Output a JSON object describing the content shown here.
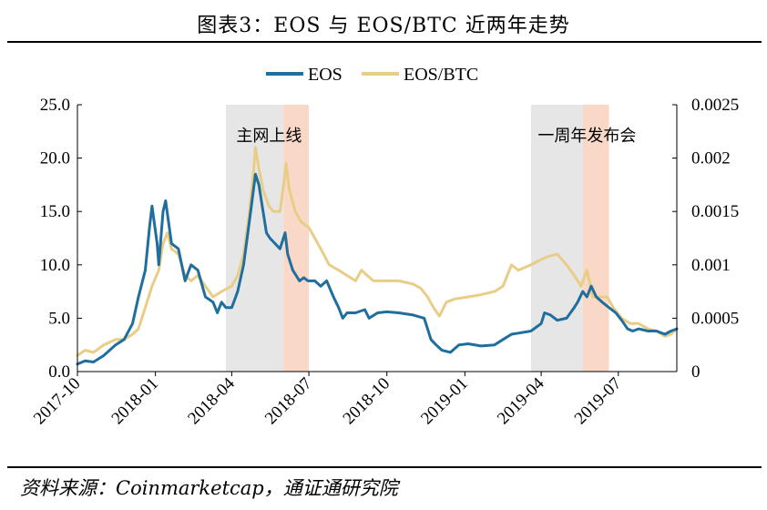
{
  "figure_title": "图表3：EOS 与 EOS/BTC 近两年走势",
  "source_note": "资料来源：Coinmarketcap，通证通研究院",
  "colors": {
    "eos": "#1F6E9E",
    "eos_btc": "#E9CD87",
    "band_gray": "#E6E6E6",
    "band_orange": "#FAD8C8"
  },
  "chart_data": {
    "type": "line",
    "legend_position": "top-center",
    "grid": false,
    "x_ticks": [
      "2017-10",
      "2018-01",
      "2018-04",
      "2018-07",
      "2018-10",
      "2019-01",
      "2019-04",
      "2019-07"
    ],
    "x_range": [
      "2017-10-01",
      "2019-09-08"
    ],
    "y_left": {
      "lim": [
        0,
        25
      ],
      "ticks": [
        "0.0",
        "5.0",
        "10.0",
        "15.0",
        "20.0",
        "25.0"
      ]
    },
    "y_right": {
      "lim": [
        0,
        0.0025
      ],
      "ticks": [
        "0",
        "0.0005",
        "0.001",
        "0.0015",
        "0.002",
        "0.0025"
      ]
    },
    "annotations": [
      {
        "text": "主网上线",
        "date": "2018-05-15"
      },
      {
        "text": "一周年发布会",
        "date": "2019-05-25"
      }
    ],
    "bands": [
      {
        "start": "2018-03-25",
        "end": "2018-06-01",
        "color": "gray"
      },
      {
        "start": "2018-06-01",
        "end": "2018-07-01",
        "color": "orange"
      },
      {
        "start": "2019-03-20",
        "end": "2019-05-20",
        "color": "gray"
      },
      {
        "start": "2019-05-20",
        "end": "2019-06-20",
        "color": "orange"
      }
    ],
    "series": [
      {
        "name": "EOS",
        "axis": "left",
        "points": [
          [
            "2017-10-01",
            0.7
          ],
          [
            "2017-10-10",
            1.0
          ],
          [
            "2017-10-20",
            0.9
          ],
          [
            "2017-11-01",
            1.5
          ],
          [
            "2017-11-15",
            2.5
          ],
          [
            "2017-11-25",
            3.0
          ],
          [
            "2017-12-05",
            4.5
          ],
          [
            "2017-12-12",
            7.0
          ],
          [
            "2017-12-20",
            9.5
          ],
          [
            "2017-12-25",
            13.5
          ],
          [
            "2017-12-28",
            15.5
          ],
          [
            "2018-01-03",
            12.0
          ],
          [
            "2018-01-05",
            10.0
          ],
          [
            "2018-01-10",
            15.0
          ],
          [
            "2018-01-13",
            16.0
          ],
          [
            "2018-01-20",
            12.0
          ],
          [
            "2018-01-28",
            11.5
          ],
          [
            "2018-02-05",
            8.5
          ],
          [
            "2018-02-12",
            10.0
          ],
          [
            "2018-02-20",
            9.5
          ],
          [
            "2018-03-01",
            7.0
          ],
          [
            "2018-03-10",
            6.5
          ],
          [
            "2018-03-15",
            5.5
          ],
          [
            "2018-03-20",
            6.5
          ],
          [
            "2018-03-25",
            6.0
          ],
          [
            "2018-04-01",
            6.0
          ],
          [
            "2018-04-08",
            7.5
          ],
          [
            "2018-04-15",
            10.0
          ],
          [
            "2018-04-20",
            13.0
          ],
          [
            "2018-04-25",
            16.0
          ],
          [
            "2018-04-29",
            18.5
          ],
          [
            "2018-05-03",
            17.5
          ],
          [
            "2018-05-08",
            15.0
          ],
          [
            "2018-05-12",
            13.0
          ],
          [
            "2018-05-16",
            12.5
          ],
          [
            "2018-05-22",
            12.0
          ],
          [
            "2018-05-28",
            11.5
          ],
          [
            "2018-06-03",
            13.0
          ],
          [
            "2018-06-06",
            11.0
          ],
          [
            "2018-06-12",
            9.5
          ],
          [
            "2018-06-20",
            8.5
          ],
          [
            "2018-06-25",
            8.8
          ],
          [
            "2018-06-30",
            8.5
          ],
          [
            "2018-07-08",
            8.5
          ],
          [
            "2018-07-15",
            8.0
          ],
          [
            "2018-07-22",
            8.5
          ],
          [
            "2018-07-30",
            7.0
          ],
          [
            "2018-08-05",
            6.0
          ],
          [
            "2018-08-10",
            5.0
          ],
          [
            "2018-08-15",
            5.5
          ],
          [
            "2018-08-25",
            5.5
          ],
          [
            "2018-09-05",
            5.8
          ],
          [
            "2018-09-10",
            5.0
          ],
          [
            "2018-09-20",
            5.5
          ],
          [
            "2018-10-01",
            5.6
          ],
          [
            "2018-10-15",
            5.5
          ],
          [
            "2018-11-01",
            5.3
          ],
          [
            "2018-11-14",
            5.0
          ],
          [
            "2018-11-18",
            4.0
          ],
          [
            "2018-11-22",
            3.0
          ],
          [
            "2018-11-28",
            2.5
          ],
          [
            "2018-12-05",
            2.0
          ],
          [
            "2018-12-15",
            1.8
          ],
          [
            "2018-12-25",
            2.5
          ],
          [
            "2019-01-05",
            2.6
          ],
          [
            "2019-01-20",
            2.4
          ],
          [
            "2019-02-05",
            2.5
          ],
          [
            "2019-02-15",
            3.0
          ],
          [
            "2019-02-25",
            3.5
          ],
          [
            "2019-03-05",
            3.6
          ],
          [
            "2019-03-20",
            3.8
          ],
          [
            "2019-04-01",
            4.5
          ],
          [
            "2019-04-05",
            5.5
          ],
          [
            "2019-04-12",
            5.3
          ],
          [
            "2019-04-20",
            4.8
          ],
          [
            "2019-05-01",
            5.0
          ],
          [
            "2019-05-10",
            6.0
          ],
          [
            "2019-05-14",
            6.5
          ],
          [
            "2019-05-20",
            7.5
          ],
          [
            "2019-05-25",
            7.0
          ],
          [
            "2019-05-30",
            8.0
          ],
          [
            "2019-06-05",
            7.0
          ],
          [
            "2019-06-12",
            6.5
          ],
          [
            "2019-06-20",
            6.0
          ],
          [
            "2019-06-28",
            5.5
          ],
          [
            "2019-07-05",
            4.8
          ],
          [
            "2019-07-12",
            4.0
          ],
          [
            "2019-07-18",
            3.8
          ],
          [
            "2019-07-25",
            4.0
          ],
          [
            "2019-08-05",
            3.8
          ],
          [
            "2019-08-15",
            3.8
          ],
          [
            "2019-08-25",
            3.5
          ],
          [
            "2019-09-01",
            3.8
          ],
          [
            "2019-09-08",
            4.0
          ]
        ]
      },
      {
        "name": "EOS/BTC",
        "axis": "right",
        "points": [
          [
            "2017-10-01",
            0.00015
          ],
          [
            "2017-10-10",
            0.0002
          ],
          [
            "2017-10-20",
            0.00018
          ],
          [
            "2017-11-01",
            0.00025
          ],
          [
            "2017-11-15",
            0.0003
          ],
          [
            "2017-11-25",
            0.0003
          ],
          [
            "2017-12-05",
            0.00035
          ],
          [
            "2017-12-12",
            0.0004
          ],
          [
            "2017-12-20",
            0.0006
          ],
          [
            "2017-12-28",
            0.0008
          ],
          [
            "2018-01-05",
            0.00095
          ],
          [
            "2018-01-10",
            0.0012
          ],
          [
            "2018-01-15",
            0.0013
          ],
          [
            "2018-01-20",
            0.00115
          ],
          [
            "2018-01-28",
            0.0011
          ],
          [
            "2018-02-05",
            0.0009
          ],
          [
            "2018-02-12",
            0.00085
          ],
          [
            "2018-02-20",
            0.0009
          ],
          [
            "2018-03-01",
            0.0008
          ],
          [
            "2018-03-10",
            0.0007
          ],
          [
            "2018-03-20",
            0.00075
          ],
          [
            "2018-04-01",
            0.0008
          ],
          [
            "2018-04-08",
            0.0009
          ],
          [
            "2018-04-15",
            0.0011
          ],
          [
            "2018-04-22",
            0.0015
          ],
          [
            "2018-04-27",
            0.0019
          ],
          [
            "2018-04-29",
            0.0021
          ],
          [
            "2018-05-03",
            0.0019
          ],
          [
            "2018-05-08",
            0.0017
          ],
          [
            "2018-05-15",
            0.00155
          ],
          [
            "2018-05-20",
            0.0015
          ],
          [
            "2018-05-28",
            0.0015
          ],
          [
            "2018-06-02",
            0.0018
          ],
          [
            "2018-06-04",
            0.00195
          ],
          [
            "2018-06-08",
            0.0017
          ],
          [
            "2018-06-15",
            0.0015
          ],
          [
            "2018-06-22",
            0.0014
          ],
          [
            "2018-07-01",
            0.00135
          ],
          [
            "2018-07-08",
            0.00125
          ],
          [
            "2018-07-15",
            0.00115
          ],
          [
            "2018-07-25",
            0.001
          ],
          [
            "2018-08-05",
            0.00095
          ],
          [
            "2018-08-15",
            0.0009
          ],
          [
            "2018-08-25",
            0.00085
          ],
          [
            "2018-09-01",
            0.00095
          ],
          [
            "2018-09-15",
            0.00085
          ],
          [
            "2018-10-01",
            0.00085
          ],
          [
            "2018-10-15",
            0.00085
          ],
          [
            "2018-11-01",
            0.00082
          ],
          [
            "2018-11-10",
            0.00078
          ],
          [
            "2018-11-18",
            0.0007
          ],
          [
            "2018-11-25",
            0.0006
          ],
          [
            "2018-12-02",
            0.00052
          ],
          [
            "2018-12-10",
            0.00065
          ],
          [
            "2018-12-20",
            0.00068
          ],
          [
            "2019-01-05",
            0.0007
          ],
          [
            "2019-01-20",
            0.00072
          ],
          [
            "2019-02-05",
            0.00075
          ],
          [
            "2019-02-15",
            0.0008
          ],
          [
            "2019-02-25",
            0.001
          ],
          [
            "2019-03-05",
            0.00095
          ],
          [
            "2019-03-20",
            0.001
          ],
          [
            "2019-04-01",
            0.00105
          ],
          [
            "2019-04-10",
            0.00108
          ],
          [
            "2019-04-20",
            0.0011
          ],
          [
            "2019-05-01",
            0.001
          ],
          [
            "2019-05-10",
            0.0009
          ],
          [
            "2019-05-18",
            0.0008
          ],
          [
            "2019-05-25",
            0.00095
          ],
          [
            "2019-06-01",
            0.0007
          ],
          [
            "2019-06-10",
            0.0007
          ],
          [
            "2019-06-18",
            0.0007
          ],
          [
            "2019-06-25",
            0.0006
          ],
          [
            "2019-07-05",
            0.0005
          ],
          [
            "2019-07-15",
            0.00045
          ],
          [
            "2019-07-25",
            0.00045
          ],
          [
            "2019-08-05",
            0.0004
          ],
          [
            "2019-08-15",
            0.00038
          ],
          [
            "2019-08-25",
            0.00033
          ],
          [
            "2019-09-01",
            0.00035
          ],
          [
            "2019-09-08",
            0.0004
          ]
        ]
      }
    ]
  }
}
